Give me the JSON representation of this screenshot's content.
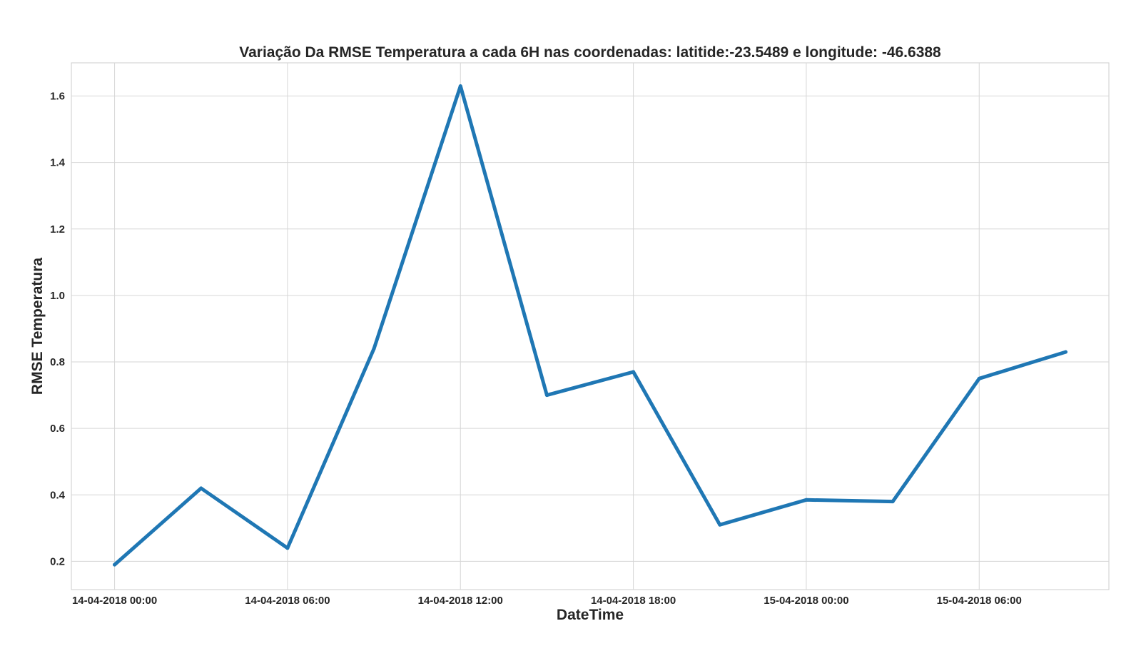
{
  "chart_data": {
    "type": "line",
    "title": "Variação Da RMSE Temperatura a cada 6H nas coordenadas: latitide:-23.5489 e longitude: -46.6388",
    "xlabel": "DateTime",
    "ylabel": "RMSE Temperatura",
    "x": [
      "14-04-2018 00:00",
      "14-04-2018 03:00",
      "14-04-2018 06:00",
      "14-04-2018 09:00",
      "14-04-2018 12:00",
      "14-04-2018 15:00",
      "14-04-2018 18:00",
      "14-04-2018 21:00",
      "15-04-2018 00:00",
      "15-04-2018 03:00",
      "15-04-2018 06:00",
      "15-04-2018 09:00"
    ],
    "series": [
      {
        "values": [
          0.19,
          0.42,
          0.24,
          0.84,
          1.63,
          0.7,
          0.77,
          0.31,
          0.385,
          0.38,
          0.75,
          0.83
        ]
      }
    ],
    "xticks": [
      "14-04-2018 00:00",
      "14-04-2018 06:00",
      "14-04-2018 12:00",
      "14-04-2018 18:00",
      "15-04-2018 00:00",
      "15-04-2018 06:00"
    ],
    "yticks": [
      0.2,
      0.4,
      0.6,
      0.8,
      1.0,
      1.2,
      1.4,
      1.6
    ],
    "ylim": [
      0.115,
      1.7
    ],
    "xlim": [
      "13-04-2018 22:30",
      "15-04-2018 10:30"
    ],
    "grid": true,
    "line_color": "#1f77b4"
  }
}
